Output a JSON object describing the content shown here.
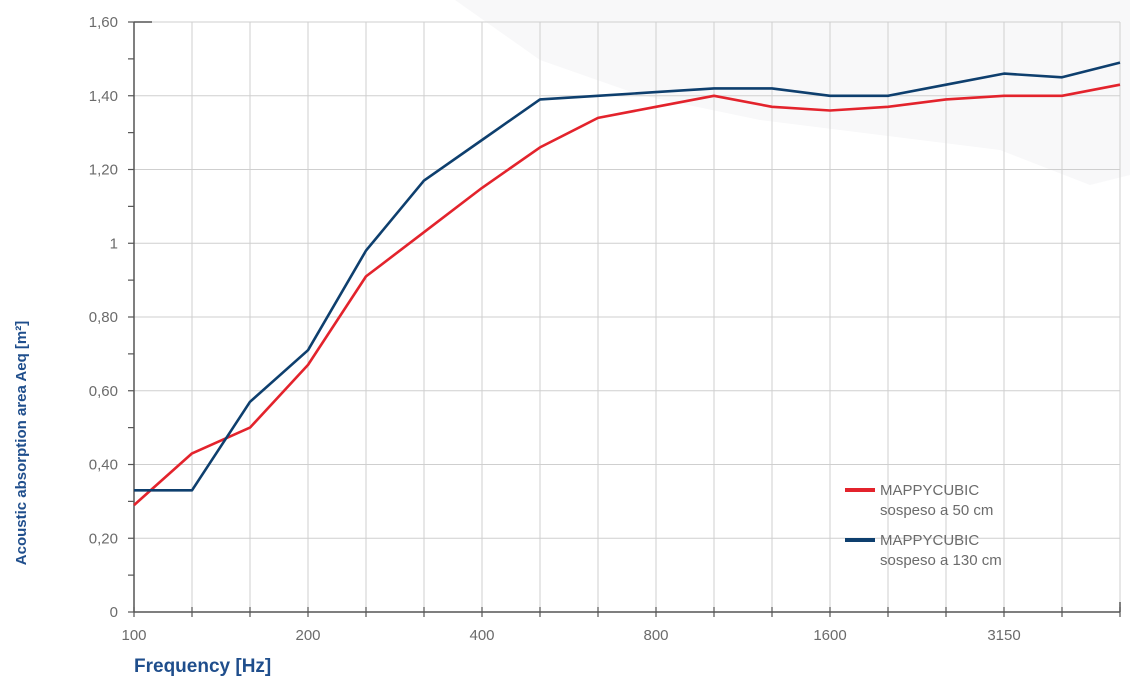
{
  "chart_data": {
    "type": "line",
    "xlabel": "Frequency [Hz]",
    "ylabel": "Acoustic absorption area Aeq [m²]",
    "ylim": [
      0,
      1.6
    ],
    "y_ticks": [
      {
        "value": 0,
        "label": "0"
      },
      {
        "value": 0.2,
        "label": "0,20"
      },
      {
        "value": 0.4,
        "label": "0,40"
      },
      {
        "value": 0.6,
        "label": "0,60"
      },
      {
        "value": 0.8,
        "label": "0,80"
      },
      {
        "value": 1.0,
        "label": "1"
      },
      {
        "value": 1.2,
        "label": "1,20"
      },
      {
        "value": 1.4,
        "label": "1,40"
      },
      {
        "value": 1.6,
        "label": "1,60"
      }
    ],
    "x": [
      100,
      125,
      160,
      200,
      250,
      315,
      400,
      500,
      630,
      800,
      1000,
      1250,
      1600,
      2000,
      2500,
      3150,
      4000,
      5000
    ],
    "x_tick_labels": [
      {
        "x": 100,
        "label": "100"
      },
      {
        "x": 200,
        "label": "200"
      },
      {
        "x": 400,
        "label": "400"
      },
      {
        "x": 800,
        "label": "800"
      },
      {
        "x": 1600,
        "label": "1600"
      },
      {
        "x": 3150,
        "label": "3150"
      }
    ],
    "grid": true,
    "legend_position": "bottom-right",
    "series": [
      {
        "name": "MAPPYCUBIC sospeso a 50 cm",
        "label_lines": [
          "MAPPYCUBIC",
          "sospeso a 50 cm"
        ],
        "color": "#e3232c",
        "values": [
          0.29,
          0.43,
          0.5,
          0.67,
          0.91,
          1.03,
          1.15,
          1.26,
          1.34,
          1.37,
          1.4,
          1.37,
          1.36,
          1.37,
          1.39,
          1.4,
          1.4,
          1.43
        ]
      },
      {
        "name": "MAPPYCUBIC sospeso a 130 cm",
        "label_lines": [
          "MAPPYCUBIC",
          "sospeso a 130 cm"
        ],
        "color": "#0e3f6e",
        "values": [
          0.33,
          0.33,
          0.57,
          0.71,
          0.98,
          1.17,
          1.28,
          1.39,
          1.4,
          1.41,
          1.42,
          1.42,
          1.4,
          1.4,
          1.43,
          1.46,
          1.45,
          1.49
        ]
      }
    ]
  }
}
